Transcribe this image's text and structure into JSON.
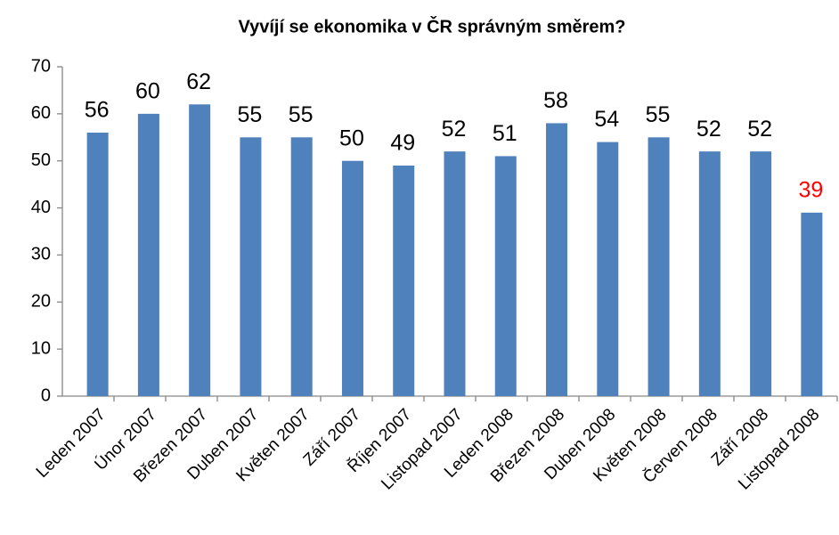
{
  "chart_data": {
    "type": "bar",
    "title": "Vyvíjí se ekonomika  v ČR správným směrem?",
    "categories": [
      "Leden 2007",
      "Únor 2007",
      "Březen 2007",
      "Duben 2007",
      "Květen 2007",
      "Září 2007",
      "Říjen 2007",
      "Listopad 2007",
      "Leden 2008",
      "Březen 2008",
      "Duben 2008",
      "Květen 2008",
      "Červen 2008",
      "Září 2008",
      "Listopad 2008"
    ],
    "values": [
      56,
      60,
      62,
      55,
      55,
      50,
      49,
      52,
      51,
      58,
      54,
      55,
      52,
      52,
      39
    ],
    "color": "#4f81bd",
    "value_label_colors": [
      "#000000",
      "#000000",
      "#000000",
      "#000000",
      "#000000",
      "#000000",
      "#000000",
      "#000000",
      "#000000",
      "#000000",
      "#000000",
      "#000000",
      "#000000",
      "#000000",
      "#ff0000"
    ],
    "ylim": [
      0,
      70
    ],
    "yticks": [
      0,
      10,
      20,
      30,
      40,
      50,
      60,
      70
    ],
    "grid": false
  }
}
